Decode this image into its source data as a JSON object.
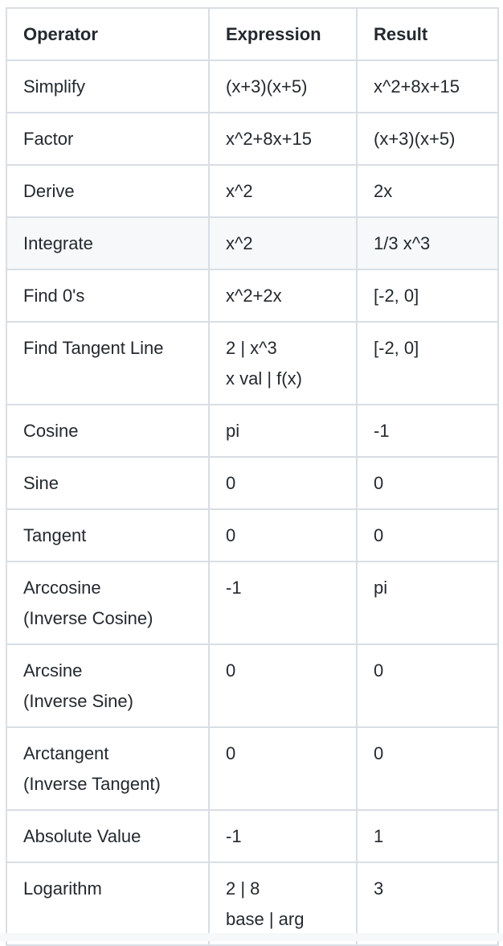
{
  "table": {
    "headers": {
      "operator": "Operator",
      "expression": "Expression",
      "result": "Result"
    },
    "rows": [
      {
        "operator": [
          "Simplify"
        ],
        "expression": [
          "(x+3)(x+5)"
        ],
        "result": [
          "x^2+8x+15"
        ]
      },
      {
        "operator": [
          "Factor"
        ],
        "expression": [
          "x^2+8x+15"
        ],
        "result": [
          "(x+3)(x+5)"
        ]
      },
      {
        "operator": [
          "Derive"
        ],
        "expression": [
          "x^2"
        ],
        "result": [
          "2x"
        ]
      },
      {
        "operator": [
          "Integrate"
        ],
        "expression": [
          "x^2"
        ],
        "result": [
          "1/3 x^3"
        ]
      },
      {
        "operator": [
          "Find 0's"
        ],
        "expression": [
          "x^2+2x"
        ],
        "result": [
          "[-2, 0]"
        ]
      },
      {
        "operator": [
          "Find Tangent Line"
        ],
        "expression": [
          "2 | x^3",
          "x val | f(x)"
        ],
        "result": [
          "[-2, 0]"
        ]
      },
      {
        "operator": [
          "Cosine"
        ],
        "expression": [
          "pi"
        ],
        "result": [
          "-1"
        ]
      },
      {
        "operator": [
          "Sine"
        ],
        "expression": [
          "0"
        ],
        "result": [
          "0"
        ]
      },
      {
        "operator": [
          "Tangent"
        ],
        "expression": [
          "0"
        ],
        "result": [
          "0"
        ]
      },
      {
        "operator": [
          "Arccosine",
          "(Inverse Cosine)"
        ],
        "expression": [
          "-1"
        ],
        "result": [
          "pi"
        ]
      },
      {
        "operator": [
          "Arcsine",
          "(Inverse Sine)"
        ],
        "expression": [
          "0"
        ],
        "result": [
          "0"
        ]
      },
      {
        "operator": [
          "Arctangent",
          "(Inverse Tangent)"
        ],
        "expression": [
          "0"
        ],
        "result": [
          "0"
        ]
      },
      {
        "operator": [
          "Absolute Value"
        ],
        "expression": [
          "-1"
        ],
        "result": [
          "1"
        ]
      },
      {
        "operator": [
          "Logarithm"
        ],
        "expression": [
          "2 | 8",
          "base | arg"
        ],
        "result": [
          "3"
        ]
      }
    ]
  }
}
